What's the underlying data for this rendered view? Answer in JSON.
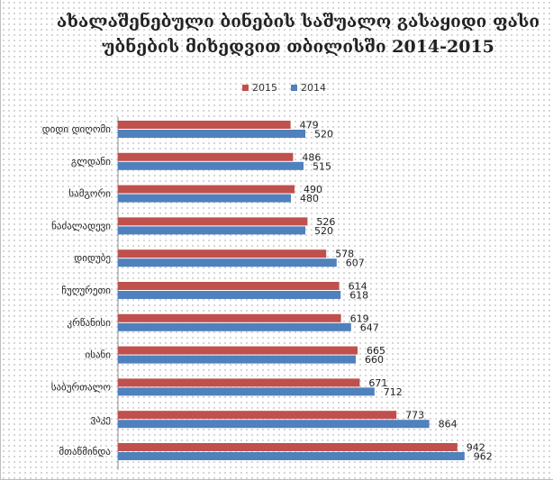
{
  "chart_data": {
    "type": "bar",
    "orientation": "horizontal",
    "title_lines": [
      "ახალაშენებული ბინების საშუალო გასაყიდი ფასი",
      "უბნების მიხედვით თბილისში 2014-2015"
    ],
    "legend_position": "top",
    "categories": [
      "დიდი დიღომი",
      "გლდანი",
      "სამგორი",
      "ნაძალადევი",
      "დიდუბე",
      "ჩუღურეთი",
      "კრწანისი",
      "ისანი",
      "საბურთალო",
      "ვაკე",
      "მთაწმინდა"
    ],
    "series": [
      {
        "name": "2015",
        "color": "#c0504d",
        "values": [
          479,
          486,
          490,
          526,
          578,
          614,
          619,
          665,
          671,
          773,
          942
        ]
      },
      {
        "name": "2014",
        "color": "#4f81bd",
        "values": [
          520,
          515,
          480,
          520,
          607,
          618,
          647,
          660,
          712,
          864,
          962
        ]
      }
    ],
    "xlim": [
      0,
      1100
    ],
    "grid": false
  }
}
